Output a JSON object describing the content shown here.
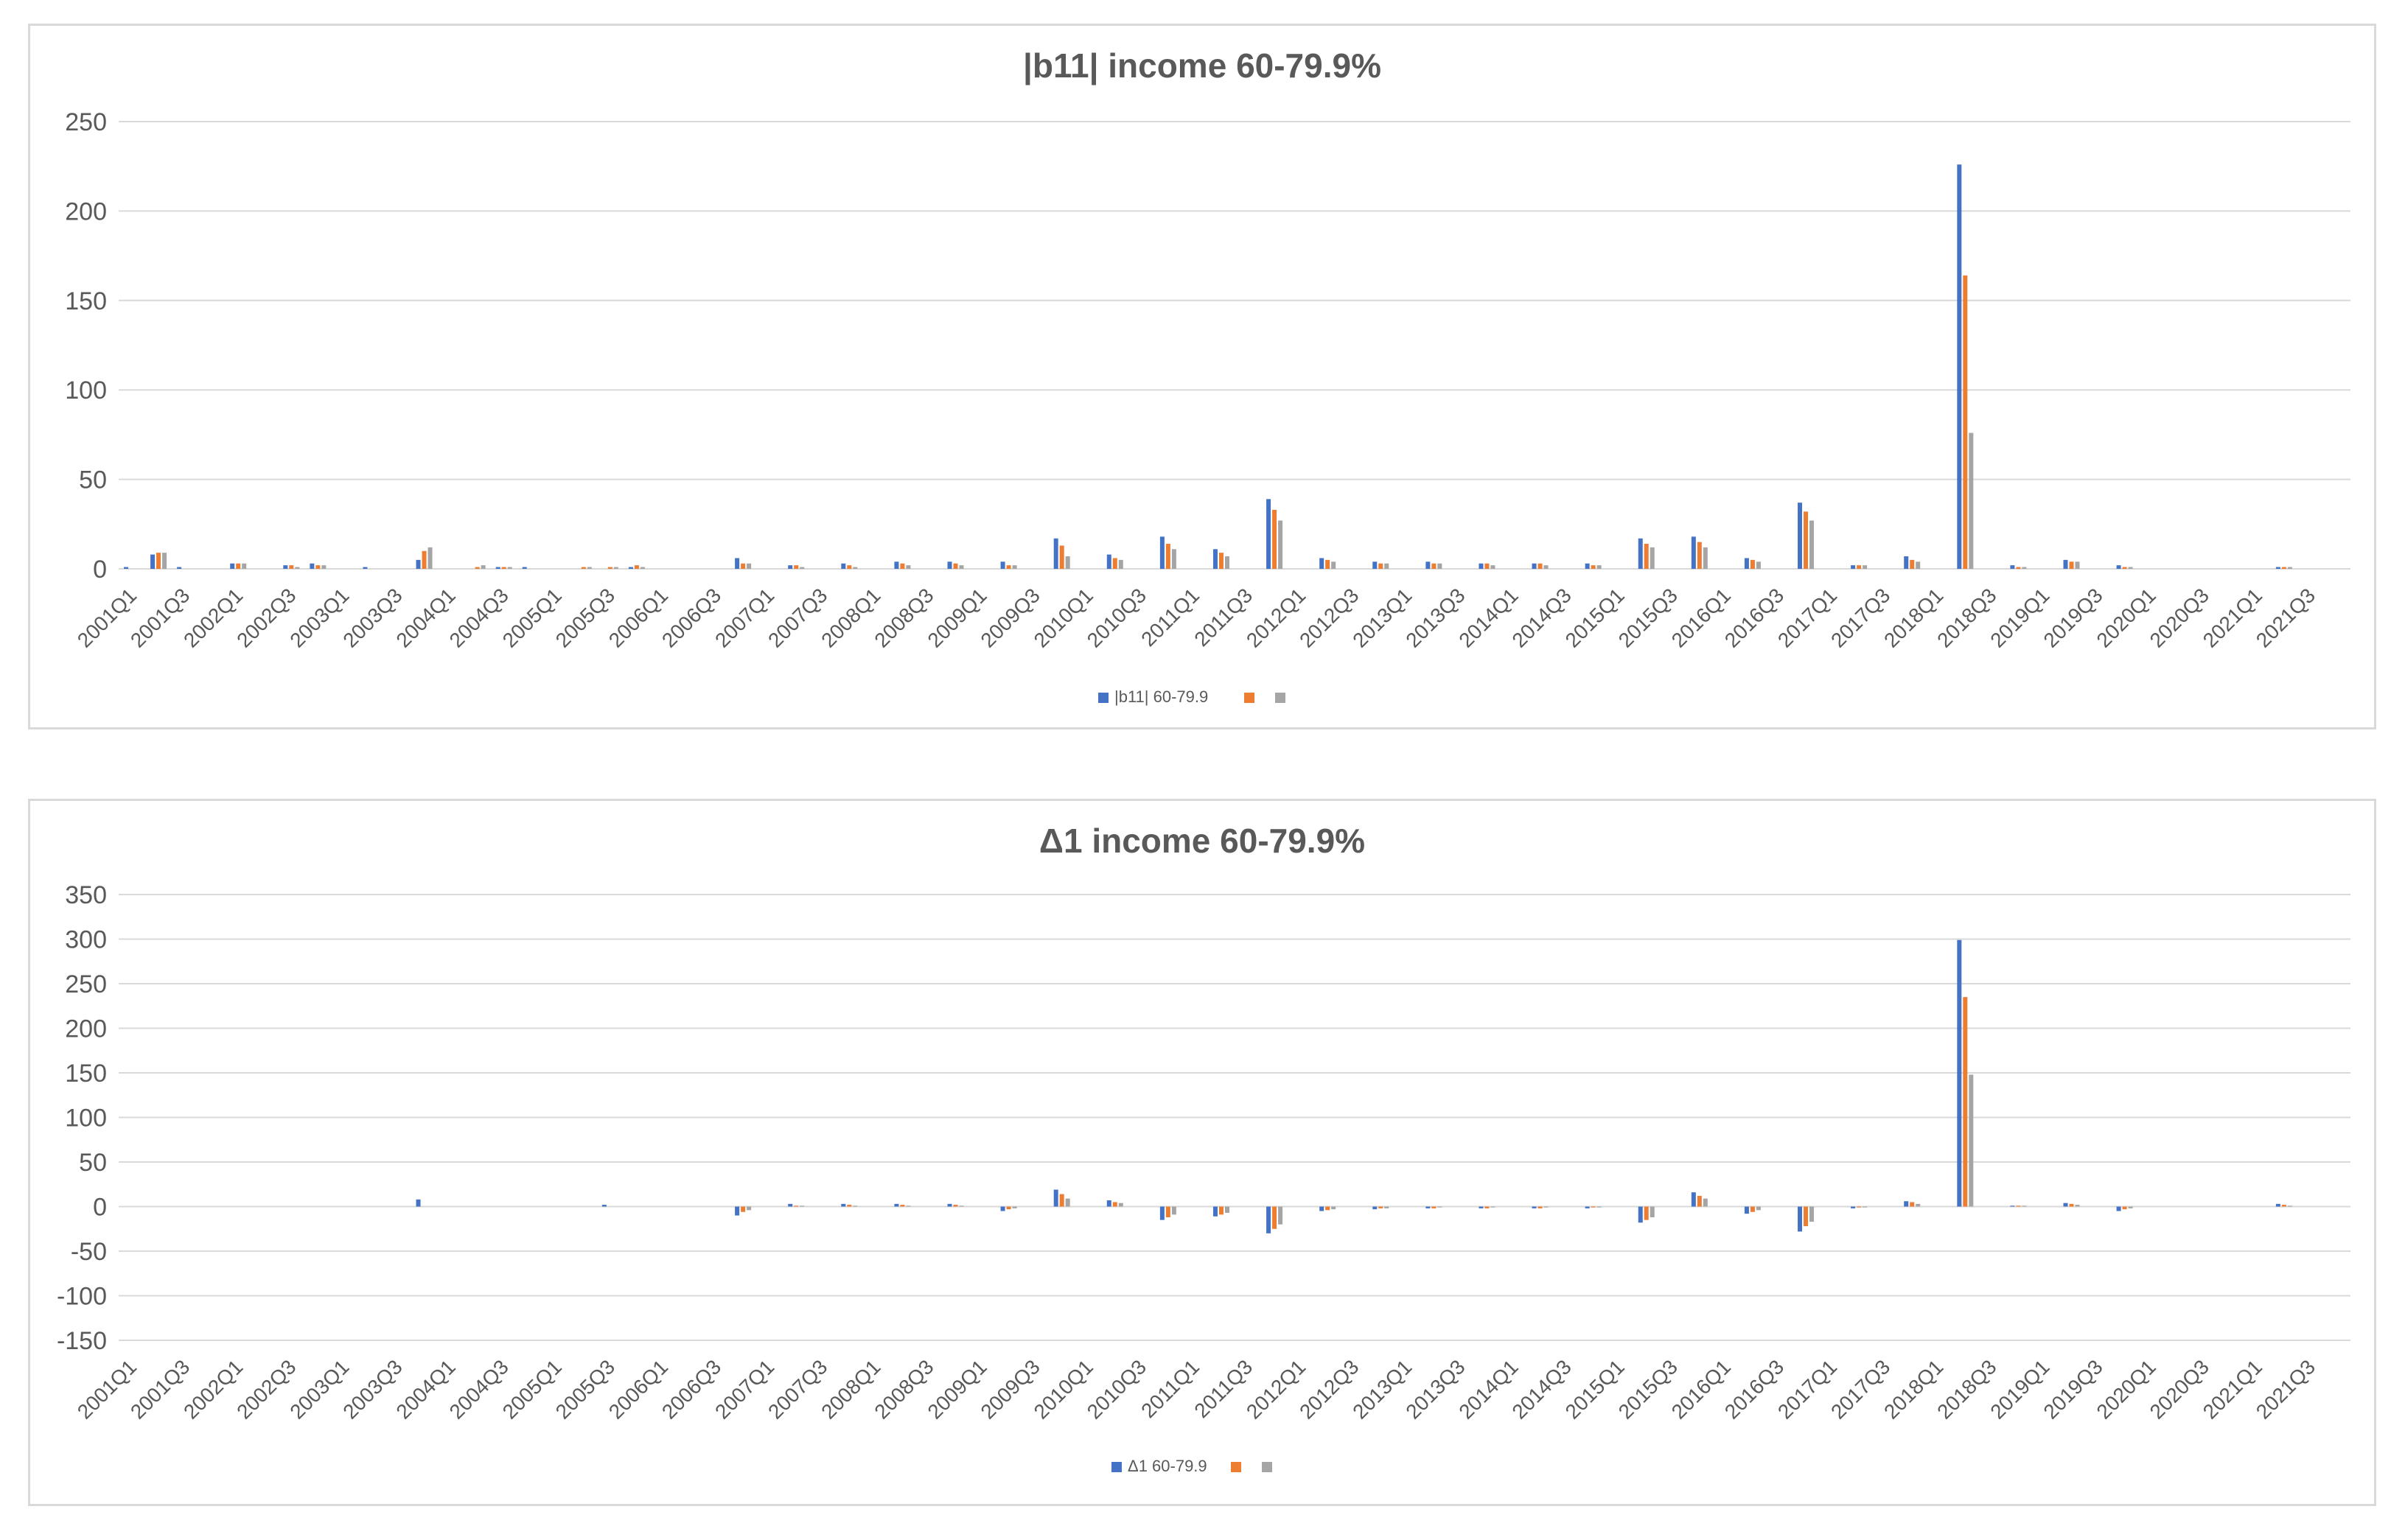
{
  "chart_data": [
    {
      "type": "bar",
      "title": "|b11| income 60-79.9%",
      "xlabel": "",
      "ylabel": "",
      "ylim": [
        0,
        250
      ],
      "yticks": [
        0,
        50,
        100,
        150,
        200,
        250
      ],
      "grid": true,
      "legend": "bottom",
      "tick_labels": [
        "2001Q1",
        "2001Q3",
        "2002Q1",
        "2002Q3",
        "2003Q1",
        "2003Q3",
        "2004Q1",
        "2004Q3",
        "2005Q1",
        "2005Q3",
        "2006Q1",
        "2006Q3",
        "2007Q1",
        "2007Q3",
        "2008Q1",
        "2008Q3",
        "2009Q1",
        "2009Q3",
        "2010Q1",
        "2010Q3",
        "2011Q1",
        "2011Q3",
        "2012Q1",
        "2012Q3",
        "2013Q1",
        "2013Q3",
        "2014Q1",
        "2014Q3",
        "2015Q1",
        "2015Q3",
        "2016Q1",
        "2016Q3",
        "2017Q1",
        "2017Q3",
        "2018Q1",
        "2018Q3",
        "2019Q1",
        "2019Q3",
        "2020Q1",
        "2020Q3",
        "2021Q1",
        "2021Q3"
      ],
      "categories": [
        "2001Q1",
        "2001Q2",
        "2001Q3",
        "2001Q4",
        "2002Q1",
        "2002Q2",
        "2002Q3",
        "2002Q4",
        "2003Q1",
        "2003Q2",
        "2003Q3",
        "2003Q4",
        "2004Q1",
        "2004Q2",
        "2004Q3",
        "2004Q4",
        "2005Q1",
        "2005Q2",
        "2005Q3",
        "2005Q4",
        "2006Q1",
        "2006Q2",
        "2006Q3",
        "2006Q4",
        "2007Q1",
        "2007Q2",
        "2007Q3",
        "2007Q4",
        "2008Q1",
        "2008Q2",
        "2008Q3",
        "2008Q4",
        "2009Q1",
        "2009Q2",
        "2009Q3",
        "2009Q4",
        "2010Q1",
        "2010Q2",
        "2010Q3",
        "2010Q4",
        "2011Q1",
        "2011Q2",
        "2011Q3",
        "2011Q4",
        "2012Q1",
        "2012Q2",
        "2012Q3",
        "2012Q4",
        "2013Q1",
        "2013Q2",
        "2013Q3",
        "2013Q4",
        "2014Q1",
        "2014Q2",
        "2014Q3",
        "2014Q4",
        "2015Q1",
        "2015Q2",
        "2015Q3",
        "2015Q4",
        "2016Q1",
        "2016Q2",
        "2016Q3",
        "2016Q4",
        "2017Q1",
        "2017Q2",
        "2017Q3",
        "2017Q4",
        "2018Q1",
        "2018Q2",
        "2018Q3",
        "2018Q4",
        "2019Q1",
        "2019Q2",
        "2019Q3",
        "2019Q4",
        "2020Q1",
        "2020Q2",
        "2020Q3",
        "2020Q4",
        "2021Q1",
        "2021Q2",
        "2021Q3",
        "2021Q4"
      ],
      "series": [
        {
          "name": "|b11| 60-79.9",
          "color": "#4472c4",
          "values": [
            1,
            8,
            1,
            0,
            3,
            0,
            2,
            3,
            0,
            1,
            0,
            5,
            0,
            0,
            1,
            1,
            0,
            0,
            0,
            1,
            0,
            0,
            0,
            6,
            0,
            2,
            0,
            3,
            0,
            4,
            0,
            4,
            0,
            4,
            0,
            17,
            0,
            8,
            0,
            18,
            0,
            11,
            0,
            39,
            0,
            6,
            0,
            4,
            0,
            4,
            0,
            3,
            0,
            3,
            0,
            3,
            0,
            17,
            0,
            18,
            0,
            6,
            0,
            37,
            0,
            2,
            0,
            7,
            0,
            226,
            0,
            2,
            0,
            5,
            0,
            2,
            0,
            0,
            0,
            0,
            0,
            1,
            0,
            0
          ]
        },
        {
          "name": "",
          "color": "#ed7d31",
          "values": [
            0,
            9,
            0,
            0,
            3,
            0,
            2,
            2,
            0,
            0,
            0,
            10,
            0,
            1,
            1,
            0,
            0,
            1,
            1,
            2,
            0,
            0,
            0,
            3,
            0,
            2,
            0,
            2,
            0,
            3,
            0,
            3,
            0,
            2,
            0,
            13,
            0,
            6,
            0,
            14,
            0,
            9,
            0,
            33,
            0,
            5,
            0,
            3,
            0,
            3,
            0,
            3,
            0,
            3,
            0,
            2,
            0,
            14,
            0,
            15,
            0,
            5,
            0,
            32,
            0,
            2,
            0,
            5,
            0,
            164,
            0,
            1,
            0,
            4,
            0,
            1,
            0,
            0,
            0,
            0,
            0,
            1,
            0,
            0
          ]
        },
        {
          "name": "",
          "color": "#a5a5a5",
          "values": [
            0,
            9,
            0,
            0,
            3,
            0,
            1,
            2,
            0,
            0,
            0,
            12,
            0,
            2,
            1,
            0,
            0,
            1,
            1,
            1,
            0,
            0,
            0,
            3,
            0,
            1,
            0,
            1,
            0,
            2,
            0,
            2,
            0,
            2,
            0,
            7,
            0,
            5,
            0,
            11,
            0,
            7,
            0,
            27,
            0,
            4,
            0,
            3,
            0,
            3,
            0,
            2,
            0,
            2,
            0,
            2,
            0,
            12,
            0,
            12,
            0,
            4,
            0,
            27,
            0,
            2,
            0,
            4,
            0,
            76,
            0,
            1,
            0,
            4,
            0,
            1,
            0,
            0,
            0,
            0,
            0,
            1,
            0,
            0
          ]
        }
      ]
    },
    {
      "type": "bar",
      "title": "Δ1 income 60-79.9%",
      "xlabel": "",
      "ylabel": "",
      "ylim": [
        -150,
        350
      ],
      "yticks": [
        -150,
        -100,
        -50,
        0,
        50,
        100,
        150,
        200,
        250,
        300,
        350
      ],
      "grid": true,
      "legend": "bottom",
      "tick_labels": [
        "2001Q1",
        "2001Q3",
        "2002Q1",
        "2002Q3",
        "2003Q1",
        "2003Q3",
        "2004Q1",
        "2004Q3",
        "2005Q1",
        "2005Q3",
        "2006Q1",
        "2006Q3",
        "2007Q1",
        "2007Q3",
        "2008Q1",
        "2008Q3",
        "2009Q1",
        "2009Q3",
        "2010Q1",
        "2010Q3",
        "2011Q1",
        "2011Q3",
        "2012Q1",
        "2012Q3",
        "2013Q1",
        "2013Q3",
        "2014Q1",
        "2014Q3",
        "2015Q1",
        "2015Q3",
        "2016Q1",
        "2016Q3",
        "2017Q1",
        "2017Q3",
        "2018Q1",
        "2018Q3",
        "2019Q1",
        "2019Q3",
        "2020Q1",
        "2020Q3",
        "2021Q1",
        "2021Q3"
      ],
      "categories": [
        "2001Q1",
        "2001Q2",
        "2001Q3",
        "2001Q4",
        "2002Q1",
        "2002Q2",
        "2002Q3",
        "2002Q4",
        "2003Q1",
        "2003Q2",
        "2003Q3",
        "2003Q4",
        "2004Q1",
        "2004Q2",
        "2004Q3",
        "2004Q4",
        "2005Q1",
        "2005Q2",
        "2005Q3",
        "2005Q4",
        "2006Q1",
        "2006Q2",
        "2006Q3",
        "2006Q4",
        "2007Q1",
        "2007Q2",
        "2007Q3",
        "2007Q4",
        "2008Q1",
        "2008Q2",
        "2008Q3",
        "2008Q4",
        "2009Q1",
        "2009Q2",
        "2009Q3",
        "2009Q4",
        "2010Q1",
        "2010Q2",
        "2010Q3",
        "2010Q4",
        "2011Q1",
        "2011Q2",
        "2011Q3",
        "2011Q4",
        "2012Q1",
        "2012Q2",
        "2012Q3",
        "2012Q4",
        "2013Q1",
        "2013Q2",
        "2013Q3",
        "2013Q4",
        "2014Q1",
        "2014Q2",
        "2014Q3",
        "2014Q4",
        "2015Q1",
        "2015Q2",
        "2015Q3",
        "2015Q4",
        "2016Q1",
        "2016Q2",
        "2016Q3",
        "2016Q4",
        "2017Q1",
        "2017Q2",
        "2017Q3",
        "2017Q4",
        "2018Q1",
        "2018Q2",
        "2018Q3",
        "2018Q4",
        "2019Q1",
        "2019Q2",
        "2019Q3",
        "2019Q4",
        "2020Q1",
        "2020Q2",
        "2020Q3",
        "2020Q4",
        "2021Q1",
        "2021Q2",
        "2021Q3",
        "2021Q4"
      ],
      "series": [
        {
          "name": "Δ1 60-79.9",
          "color": "#4472c4",
          "values": [
            0,
            0,
            0,
            0,
            0,
            0,
            0,
            0,
            0,
            0,
            0,
            8,
            0,
            0,
            0,
            0,
            0,
            0,
            2,
            0,
            0,
            0,
            0,
            -10,
            0,
            3,
            0,
            3,
            0,
            3,
            0,
            3,
            0,
            -5,
            0,
            19,
            0,
            7,
            0,
            -15,
            0,
            -11,
            0,
            -30,
            0,
            -5,
            0,
            -3,
            0,
            -2,
            0,
            -2,
            0,
            -2,
            0,
            -2,
            0,
            -18,
            0,
            16,
            0,
            -8,
            0,
            -28,
            0,
            -2,
            0,
            6,
            0,
            299,
            0,
            1,
            0,
            4,
            0,
            -5,
            0,
            0,
            0,
            0,
            0,
            3,
            0,
            0
          ]
        },
        {
          "name": "",
          "color": "#ed7d31",
          "values": [
            0,
            0,
            0,
            0,
            0,
            0,
            0,
            0,
            0,
            0,
            0,
            0,
            0,
            0,
            0,
            0,
            0,
            0,
            0,
            0,
            0,
            0,
            0,
            -6,
            0,
            1,
            0,
            2,
            0,
            2,
            0,
            2,
            0,
            -3,
            0,
            14,
            0,
            5,
            0,
            -12,
            0,
            -9,
            0,
            -25,
            0,
            -4,
            0,
            -2,
            0,
            -2,
            0,
            -2,
            0,
            -2,
            0,
            -1,
            0,
            -15,
            0,
            12,
            0,
            -6,
            0,
            -22,
            0,
            -1,
            0,
            5,
            0,
            235,
            0,
            1,
            0,
            3,
            0,
            -3,
            0,
            0,
            0,
            0,
            0,
            2,
            0,
            0
          ]
        },
        {
          "name": "",
          "color": "#a5a5a5",
          "values": [
            0,
            0,
            0,
            0,
            0,
            0,
            0,
            0,
            0,
            0,
            0,
            0,
            0,
            0,
            0,
            0,
            0,
            0,
            0,
            0,
            0,
            0,
            0,
            -4,
            0,
            1,
            0,
            1,
            0,
            1,
            0,
            1,
            0,
            -2,
            0,
            9,
            0,
            4,
            0,
            -9,
            0,
            -7,
            0,
            -20,
            0,
            -3,
            0,
            -2,
            0,
            -1,
            0,
            -1,
            0,
            -1,
            0,
            -1,
            0,
            -12,
            0,
            9,
            0,
            -4,
            0,
            -17,
            0,
            -1,
            0,
            3,
            0,
            148,
            0,
            1,
            0,
            2,
            0,
            -2,
            0,
            0,
            0,
            0,
            0,
            1,
            0,
            0
          ]
        }
      ]
    }
  ]
}
